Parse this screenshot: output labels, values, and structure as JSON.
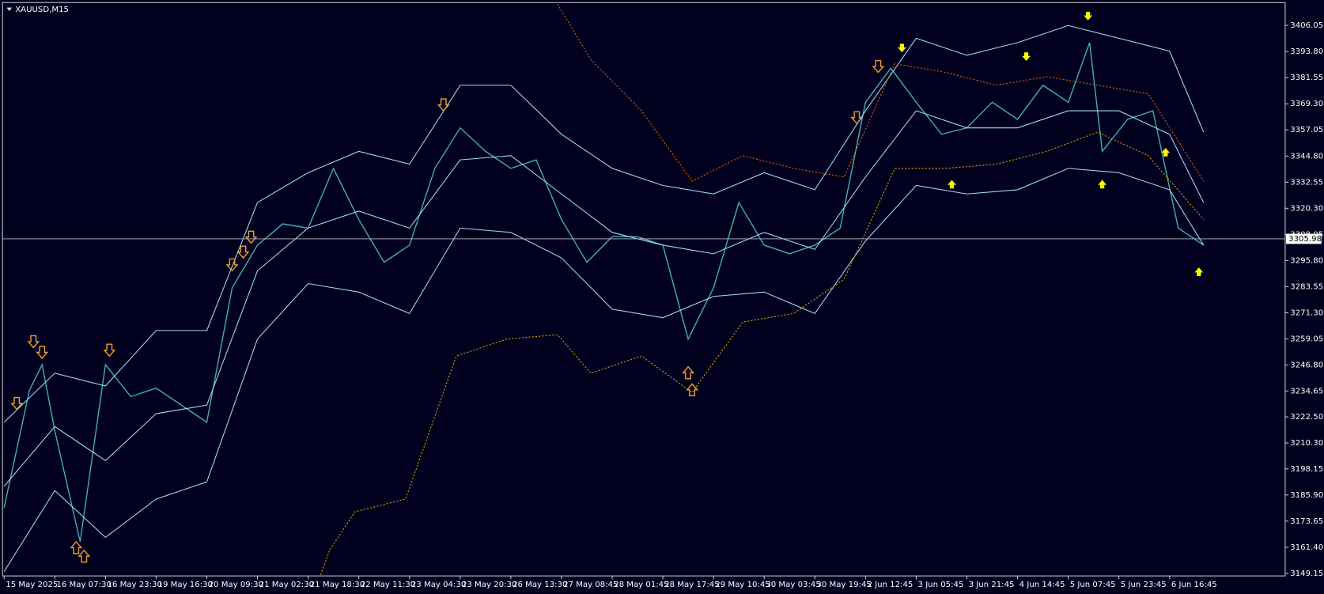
{
  "chart_data": {
    "type": "line",
    "title": "XAUUSD,M15",
    "xlim": [
      -2,
      1618
    ],
    "xticks": [
      {
        "value": 0,
        "label": "15 May 2025"
      },
      {
        "value": 64,
        "label": "16 May 07:30"
      },
      {
        "value": 128,
        "label": "16 May 23:30"
      },
      {
        "value": 192,
        "label": "19 May 16:30"
      },
      {
        "value": 256,
        "label": "20 May 09:30"
      },
      {
        "value": 320,
        "label": "21 May 02:30"
      },
      {
        "value": 384,
        "label": "21 May 18:30"
      },
      {
        "value": 448,
        "label": "22 May 11:30"
      },
      {
        "value": 512,
        "label": "23 May 04:30"
      },
      {
        "value": 576,
        "label": "23 May 20:30"
      },
      {
        "value": 640,
        "label": "26 May 13:30"
      },
      {
        "value": 704,
        "label": "27 May 08:45"
      },
      {
        "value": 768,
        "label": "28 May 01:45"
      },
      {
        "value": 832,
        "label": "28 May 17:45"
      },
      {
        "value": 896,
        "label": "29 May 10:45"
      },
      {
        "value": 960,
        "label": "30 May 03:45"
      },
      {
        "value": 1024,
        "label": "30 May 19:45"
      },
      {
        "value": 1088,
        "label": "2 Jun 12:45"
      },
      {
        "value": 1152,
        "label": "3 Jun 05:45"
      },
      {
        "value": 1216,
        "label": "3 Jun 21:45"
      },
      {
        "value": 1280,
        "label": "4 Jun 14:45"
      },
      {
        "value": 1344,
        "label": "5 Jun 07:45"
      },
      {
        "value": 1408,
        "label": "5 Jun 23:45"
      },
      {
        "value": 1472,
        "label": "6 Jun 16:45"
      }
    ],
    "ylim": [
      3147.96,
      3416.75
    ],
    "yticks": [
      3149.15,
      {
        "value": 3161.4,
        "label": "3161.40"
      },
      3173.65,
      {
        "value": 3185.9,
        "label": "3185.90"
      },
      3198.15,
      {
        "value": 3210.3,
        "label": "3210.30"
      },
      {
        "value": 3222.5,
        "label": "3222.50"
      },
      3234.65,
      {
        "value": 3246.8,
        "label": "3246.80"
      },
      3259.05,
      {
        "value": 3271.3,
        "label": "3271.30"
      },
      3283.55,
      {
        "value": 3295.8,
        "label": "3295.80"
      },
      3308.05,
      {
        "value": 3320.3,
        "label": "3320.30"
      },
      3332.55,
      {
        "value": 3344.8,
        "label": "3344.80"
      },
      3357.05,
      {
        "value": 3369.3,
        "label": "3369.30"
      },
      3381.55,
      {
        "value": 3393.8,
        "label": "3393.80"
      },
      3406.05
    ],
    "current_price": 3305.98,
    "lines": [
      {
        "color": "#3fb3b3",
        "width": 1.3,
        "dash": "none",
        "x": [
          0,
          32,
          48,
          64,
          96,
          128,
          160,
          192,
          224,
          256,
          288,
          320,
          352,
          384,
          416,
          448,
          480,
          512,
          544,
          576,
          608,
          640,
          672,
          704,
          736,
          768,
          800,
          832,
          864,
          896,
          928,
          960,
          992,
          1024,
          1056,
          1088,
          1120,
          1152,
          1184,
          1216,
          1248,
          1280,
          1312,
          1344,
          1371,
          1387,
          1419,
          1451,
          1483,
          1515
        ],
        "values": [
          3180,
          3235,
          3247,
          3216,
          3164,
          3247,
          3232,
          3236,
          3228,
          3220,
          3283,
          3303,
          3313,
          3311,
          3339,
          3315,
          3295,
          3303,
          3339,
          3358,
          3347,
          3339,
          3343,
          3315,
          3295,
          3307,
          3307,
          3303,
          3259,
          3283,
          3323,
          3303,
          3299,
          3303,
          3311,
          3370,
          3386,
          3370,
          3355,
          3358,
          3370,
          3362,
          3378,
          3370,
          3398,
          3347,
          3362,
          3366,
          3311,
          3303
        ]
      },
      {
        "color": "#9fdcf0",
        "width": 1,
        "dash": "none",
        "x": [
          0,
          64,
          128,
          192,
          256,
          320,
          384,
          448,
          512,
          576,
          640,
          704,
          768,
          832,
          896,
          960,
          1024,
          1088,
          1152,
          1216,
          1280,
          1344,
          1408,
          1472,
          1515
        ],
        "values": [
          3220,
          3243,
          3237,
          3263,
          3263,
          3323,
          3337,
          3347,
          3341,
          3378,
          3378,
          3355,
          3339,
          3331,
          3327,
          3337,
          3329,
          3366,
          3400,
          3392,
          3398,
          3406,
          3400,
          3394,
          3356
        ]
      },
      {
        "color": "#9fdcf0",
        "width": 1,
        "dash": "none",
        "x": [
          0,
          64,
          128,
          192,
          256,
          320,
          384,
          448,
          512,
          576,
          640,
          704,
          768,
          832,
          896,
          960,
          1024,
          1088,
          1152,
          1216,
          1280,
          1344,
          1408,
          1472,
          1515
        ],
        "values": [
          3190,
          3218,
          3202,
          3224,
          3228,
          3291,
          3311,
          3319,
          3311,
          3343,
          3345,
          3327,
          3309,
          3303,
          3299,
          3309,
          3301,
          3335,
          3366,
          3358,
          3358,
          3366,
          3366,
          3355,
          3323
        ]
      },
      {
        "color": "#9fdcf0",
        "width": 1,
        "dash": "none",
        "x": [
          0,
          64,
          128,
          192,
          256,
          320,
          384,
          448,
          512,
          576,
          640,
          704,
          768,
          832,
          896,
          960,
          1024,
          1088,
          1152,
          1216,
          1280,
          1344,
          1408,
          1472,
          1515
        ],
        "values": [
          3150,
          3188,
          3166,
          3184,
          3192,
          3259,
          3285,
          3281,
          3271,
          3311,
          3309,
          3297,
          3273,
          3269,
          3279,
          3281,
          3271,
          3305,
          3331,
          3327,
          3329,
          3339,
          3337,
          3329,
          3303
        ]
      },
      {
        "color": "#e0600a",
        "width": 1,
        "dash": "2 2",
        "x": [
          699,
          741,
          805,
          869,
          933,
          997,
          1061,
          1125,
          1189,
          1253,
          1317,
          1381,
          1445,
          1515
        ],
        "values": [
          3416,
          3390,
          3366,
          3333,
          3345,
          3339,
          3335,
          3388,
          3384,
          3378,
          3382,
          3378,
          3374,
          3333
        ]
      },
      {
        "color": "#d9a300",
        "width": 1,
        "dash": "2 2",
        "x": [
          400,
          411,
          443,
          507,
          571,
          635,
          699,
          741,
          805,
          869,
          933,
          997,
          1061,
          1125,
          1189,
          1253,
          1317,
          1381,
          1445,
          1515
        ],
        "values": [
          3148.5,
          3160,
          3178,
          3184,
          3251,
          3259,
          3261,
          3243,
          3251,
          3234,
          3267,
          3271,
          3287,
          3339,
          3339,
          3341,
          3347,
          3356,
          3345,
          3315
        ]
      }
    ],
    "arrows": [
      {
        "color": "#f0a030",
        "direction": "down",
        "style": "hollow",
        "x": [
          16,
          37,
          48,
          133,
          288,
          302,
          312,
          555,
          1077,
          1104
        ],
        "values": [
          3228,
          3257,
          3252,
          3253,
          3293,
          3299,
          3306,
          3368,
          3362,
          3386
        ]
      },
      {
        "color": "#f0a030",
        "direction": "up",
        "style": "hollow",
        "x": [
          91,
          101,
          864,
          869
        ],
        "values": [
          3162,
          3158,
          3244,
          3236
        ]
      },
      {
        "color": "#ffff00",
        "direction": "down",
        "style": "solid",
        "x": [
          1134,
          1291,
          1369
        ],
        "values": [
          3395,
          3391,
          3410
        ]
      },
      {
        "color": "#ffff00",
        "direction": "up",
        "style": "solid",
        "x": [
          1197,
          1387,
          1467,
          1509
        ],
        "values": [
          3332,
          3332,
          3347,
          3291
        ]
      }
    ]
  }
}
